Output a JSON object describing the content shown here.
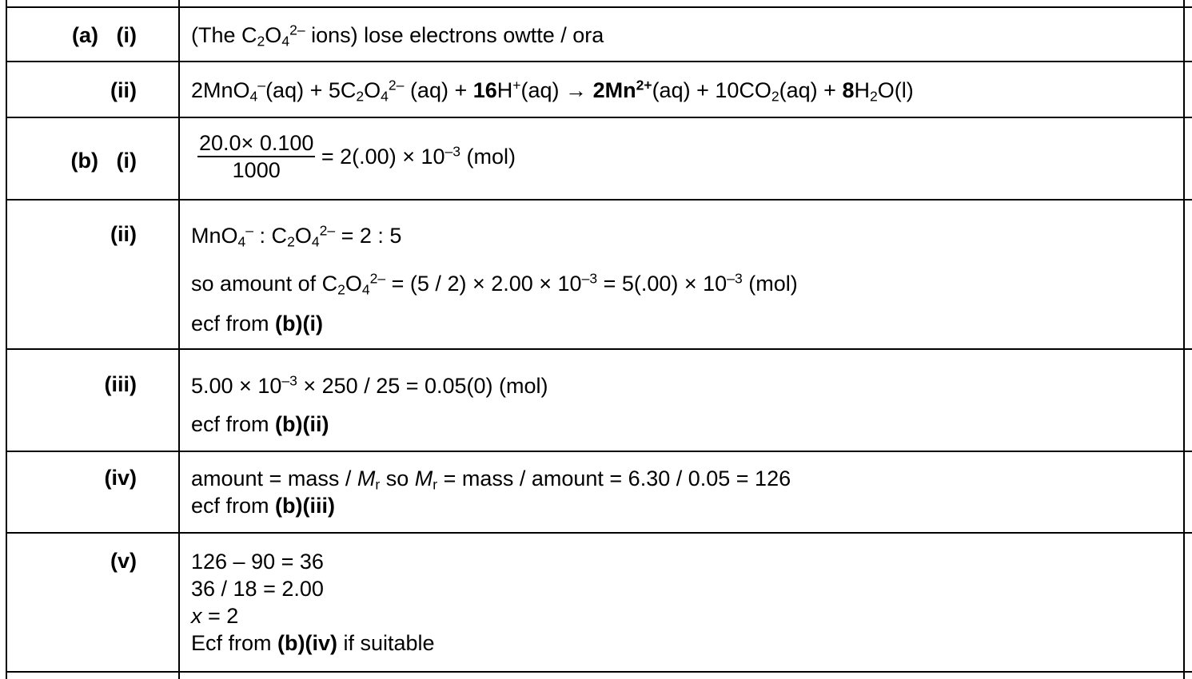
{
  "rows": [
    {
      "label_part": "(a)",
      "label_sub": "(i)"
    },
    {
      "label_sub": "(ii)"
    },
    {
      "label_part": "(b)",
      "label_sub": "(i)"
    },
    {
      "label_sub": "(ii)"
    },
    {
      "label_sub": "(iii)"
    },
    {
      "label_sub": "(iv)"
    },
    {
      "label_sub": "(v)"
    }
  ],
  "a_i": {
    "pre": "(The C",
    "sub1": "2",
    "mid": "O",
    "sub2": "4",
    "sup": "2–",
    "post": " ions) lose electrons owtte / ora"
  },
  "a_ii": {
    "t1": "2MnO",
    "s1": "4",
    "p1": "–",
    "t2": "(aq) + 5C",
    "s2": "2",
    "t3": "O",
    "s3": "4",
    "p2": "2–",
    "t4": " (aq) + ",
    "b1": "16",
    "t5": "H",
    "p3": "+",
    "t6": "(aq) → ",
    "b2": "2Mn",
    "p4": "2+",
    "t7": "(aq) + 10CO",
    "s4": "2",
    "t8": "(aq) + ",
    "b3": "8",
    "t9": "H",
    "s5": "2",
    "t10": "O(l)"
  },
  "b_i": {
    "numerator": "20.0× 0.100",
    "denominator": "1000",
    "result_pre": " = 2(.00) × 10",
    "result_exp": "–3",
    "result_post": " (mol)"
  },
  "b_ii": {
    "l1a": "MnO",
    "l1s": "4",
    "l1p": "–",
    "l1b": " : C",
    "l1s2": "2",
    "l1c": "O",
    "l1s3": "4",
    "l1p2": "2–",
    "l1d": " = 2 : 5",
    "l2a": "so amount of C",
    "l2s": "2",
    "l2b": "O",
    "l2s2": "4",
    "l2p": "2–",
    "l2c": " = (5 / 2) × 2.00 × 10",
    "l2e": "–3",
    "l2d": " = 5(.00) × 10",
    "l2e2": "–3",
    "l2f": " (mol)",
    "l3a": "ecf from ",
    "l3b": "(b)(i)"
  },
  "b_iii": {
    "l1a": "5.00 × 10",
    "l1e": "–3",
    "l1b": " × 250 / 25 = 0.05(0) (mol)",
    "l2a": "ecf from ",
    "l2b": "(b)(ii)"
  },
  "b_iv": {
    "l1a": "amount = mass / ",
    "l1m": "M",
    "l1r": "r",
    "l1b": " so ",
    "l1m2": "M",
    "l1r2": "r",
    "l1c": " = mass / amount = 6.30 / 0.05 = 126",
    "l2a": "ecf from ",
    "l2b": "(b)(iii)"
  },
  "b_v": {
    "l1": "126 – 90 = 36",
    "l2": "36 / 18 = 2.00",
    "l3x": "x",
    "l3b": " = 2",
    "l4a": "Ecf from ",
    "l4b": "(b)(iv)",
    "l4c": " if suitable"
  }
}
